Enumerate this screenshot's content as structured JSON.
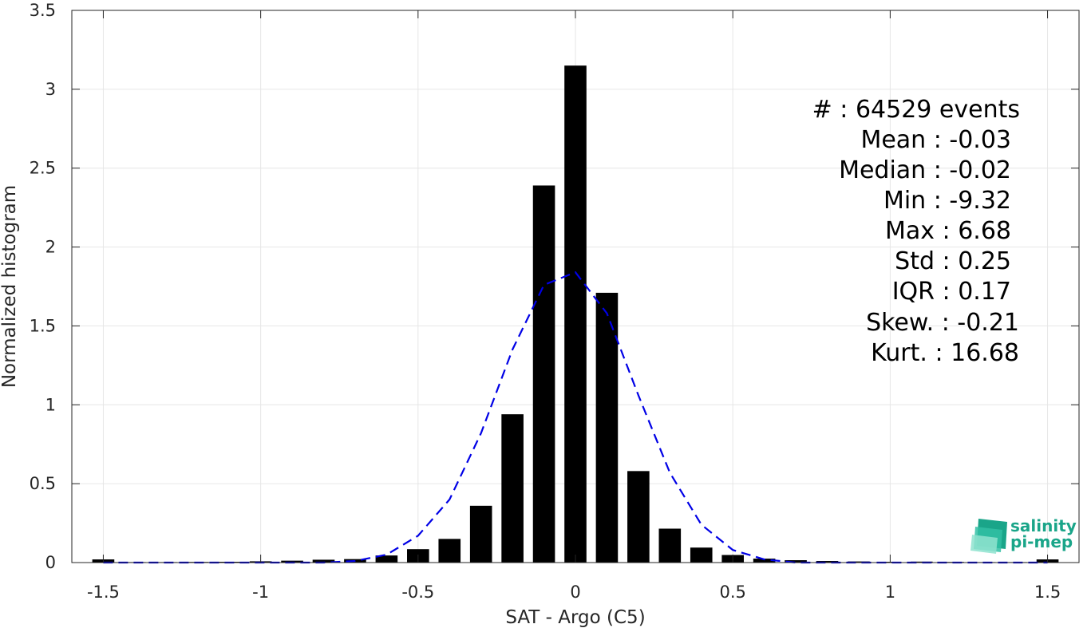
{
  "chart_data": {
    "type": "bar",
    "xlabel": "SAT - Argo (C5)",
    "ylabel": "Normalized histogram",
    "xlim": [
      -1.6,
      1.6
    ],
    "ylim": [
      0,
      3.5
    ],
    "grid": true,
    "x_ticks": [
      -1.5,
      -1,
      -0.5,
      0,
      0.5,
      1,
      1.5
    ],
    "x_tick_labels": [
      "-1.5",
      "-1",
      "-0.5",
      "0",
      "0.5",
      "1",
      "1.5"
    ],
    "y_ticks": [
      0,
      0.5,
      1,
      1.5,
      2,
      2.5,
      3,
      3.5
    ],
    "y_tick_labels": [
      "0",
      "0.5",
      "1",
      "1.5",
      "2",
      "2.5",
      "3",
      "3.5"
    ],
    "bar_width": 0.07,
    "histogram": {
      "x": [
        -1.5,
        -1.4,
        -1.3,
        -1.2,
        -1.1,
        -1.0,
        -0.9,
        -0.8,
        -0.7,
        -0.6,
        -0.5,
        -0.4,
        -0.3,
        -0.2,
        -0.1,
        0.0,
        0.1,
        0.2,
        0.3,
        0.4,
        0.5,
        0.6,
        0.7,
        0.8,
        0.9,
        1.0,
        1.1,
        1.2,
        1.3,
        1.4,
        1.5
      ],
      "values": [
        0.02,
        0.003,
        0.003,
        0.004,
        0.005,
        0.008,
        0.012,
        0.018,
        0.022,
        0.045,
        0.085,
        0.15,
        0.36,
        0.94,
        2.39,
        3.15,
        1.71,
        0.58,
        0.215,
        0.095,
        0.048,
        0.025,
        0.015,
        0.01,
        0.007,
        0.005,
        0.006,
        0.004,
        0.003,
        0.003,
        0.02
      ],
      "color": "#000000"
    },
    "gaussian_fit": {
      "style": "dashed",
      "color": "#0000e6",
      "x": [
        -1.5,
        -1.4,
        -1.3,
        -1.2,
        -1.1,
        -1.0,
        -0.9,
        -0.8,
        -0.7,
        -0.6,
        -0.5,
        -0.4,
        -0.3,
        -0.2,
        -0.1,
        0.0,
        0.1,
        0.2,
        0.3,
        0.4,
        0.5,
        0.6,
        0.7,
        0.8,
        0.9,
        1.0,
        1.1,
        1.2,
        1.3,
        1.4,
        1.5
      ],
      "y": [
        0.0,
        0.0,
        0.0,
        0.0,
        0.0,
        0.0,
        0.0,
        0.0,
        0.01,
        0.05,
        0.17,
        0.4,
        0.82,
        1.35,
        1.76,
        1.84,
        1.58,
        1.06,
        0.57,
        0.24,
        0.08,
        0.02,
        0.0,
        0.0,
        0.0,
        0.0,
        0.0,
        0.0,
        0.0,
        0.0,
        0.0
      ]
    }
  },
  "stats": {
    "lines": [
      "#  : 64529 events",
      "Mean : -0.03",
      "Median : -0.02",
      "Min : -9.32",
      "Max : 6.68",
      "Std : 0.25",
      "IQR : 0.17",
      "Skew. : -0.21",
      "Kurt. : 16.68"
    ]
  },
  "logo": {
    "line1": "salinity",
    "line2": "pi-mep",
    "colors": [
      "#1aa589",
      "#33c0a5",
      "#8fe3cf"
    ]
  }
}
